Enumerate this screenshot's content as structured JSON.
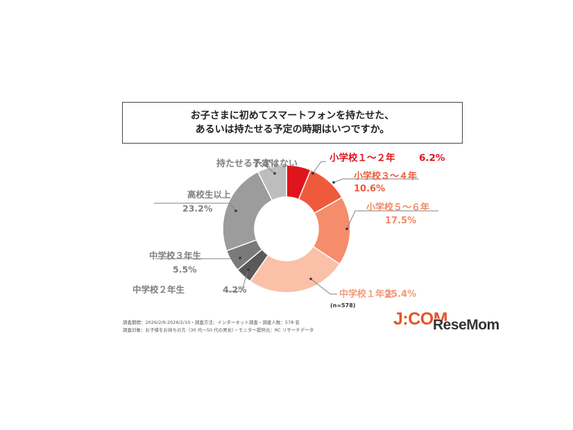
{
  "question": {
    "line1": "お子さまに初めてスマートフォンを持たせた、",
    "line2": "あるいは持たせる予定の時期はいつですか。"
  },
  "chart_data": {
    "type": "pie",
    "donut": true,
    "slices": [
      {
        "label": "小学校１～２年",
        "value": 6.2,
        "value_text": "6.2%",
        "color": "#e0141c",
        "label_color": "#e0141c"
      },
      {
        "label": "小学校３～４年",
        "value": 10.6,
        "value_text": "10.6%",
        "color": "#f05a3c",
        "label_color": "#ef5a3a"
      },
      {
        "label": "小学校５～６年",
        "value": 17.5,
        "value_text": "17.5%",
        "color": "#f58c6c",
        "label_color": "#f28866"
      },
      {
        "label": "中学校１年生",
        "value": 25.4,
        "value_text": "25.4%",
        "color": "#fac0a8",
        "label_color": "#f29a7a"
      },
      {
        "label": "中学校２年生",
        "value": 4.2,
        "value_text": "4.2%",
        "color": "#595959",
        "label_color": "#7f7f7f"
      },
      {
        "label": "中学校３年生",
        "value": 5.5,
        "value_text": "5.5%",
        "color": "#7a7a7a",
        "label_color": "#7f7f7f"
      },
      {
        "label": "高校生以上",
        "value": 23.2,
        "value_text": "23.2%",
        "color": "#9c9c9c",
        "label_color": "#7f7f7f"
      },
      {
        "label": "持たせる予定はない",
        "value": 7.4,
        "value_text": "7.4%",
        "color": "#bdbdbd",
        "label_color": "#7f7f7f"
      }
    ],
    "sample_note": "(n=578)"
  },
  "meta": {
    "survey_line": "調査期間：2026/2/9-2026/2/10・調査方法：インターネット調査・調査人数：578 名",
    "target_line": "調査対象：お子様をお持ちの方（30 代～50 代の男女）・モニター提供元：RC リサーチデータ"
  },
  "logos": {
    "jcom": "J:COM",
    "resemom": "ReseMom"
  }
}
